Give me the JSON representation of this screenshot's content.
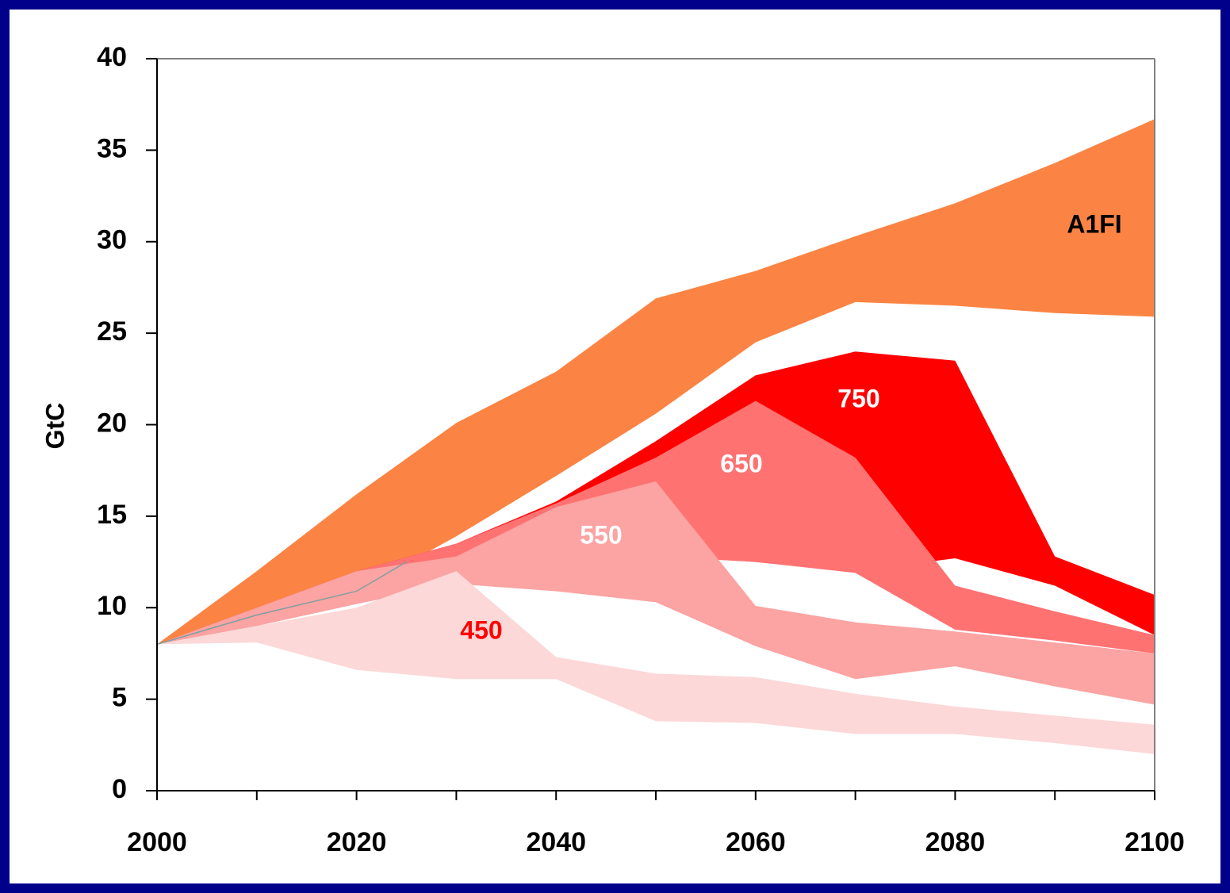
{
  "chart_data": {
    "type": "range-area",
    "y_label": "GtC",
    "x": [
      2000,
      2010,
      2020,
      2030,
      2040,
      2050,
      2060,
      2070,
      2080,
      2090,
      2100
    ],
    "xlim": [
      2000,
      2100
    ],
    "xticks": [
      2000,
      2020,
      2040,
      2060,
      2080,
      2100
    ],
    "xminorticks": [
      2010,
      2030,
      2050,
      2070,
      2090
    ],
    "ylim": [
      0,
      40
    ],
    "yticks": [
      0,
      5,
      10,
      15,
      20,
      25,
      30,
      35,
      40
    ],
    "series": [
      {
        "name": "A1FI",
        "color": "#fb8444",
        "label_color": "#000000",
        "upper": [
          8,
          12.0,
          16.2,
          20.1,
          22.9,
          26.9,
          28.4,
          30.3,
          32.1,
          34.3,
          36.7
        ],
        "lower": [
          8,
          9.5,
          10.9,
          13.9,
          17.2,
          20.6,
          24.5,
          26.7,
          26.5,
          26.1,
          25.9
        ]
      },
      {
        "name": "750",
        "color": "#ff0000",
        "label_color": "#ffffff",
        "upper": [
          8,
          10,
          12,
          13.5,
          15.8,
          19.1,
          22.7,
          24.0,
          23.5,
          12.8,
          10.7
        ],
        "lower": [
          8,
          9.5,
          11,
          12.5,
          13,
          13,
          12.5,
          12,
          12.7,
          11.2,
          8.5
        ]
      },
      {
        "name": "650",
        "color": "#ff7272",
        "label_color": "#ffffff",
        "upper": [
          8,
          10,
          12,
          13.5,
          15.7,
          18.2,
          21.3,
          18.2,
          11.2,
          9.8,
          8.5
        ],
        "lower": [
          8,
          9.5,
          10.5,
          11.5,
          11,
          12.8,
          12.5,
          11.9,
          8.8,
          8.2,
          7.5
        ]
      },
      {
        "name": "550",
        "color": "#fca3a3",
        "label_color": "#ffffff",
        "upper": [
          8,
          10,
          12,
          12.8,
          15.5,
          16.9,
          10.1,
          9.2,
          8.7,
          8.1,
          7.5
        ],
        "lower": [
          8,
          9,
          10.2,
          11.3,
          10.9,
          10.3,
          7.9,
          6.1,
          6.8,
          5.7,
          4.7
        ]
      },
      {
        "name": "450",
        "color": "#fcd8d8",
        "label_color": "#ff0000",
        "upper": [
          8,
          9,
          10,
          12,
          7.3,
          6.4,
          6.2,
          5.3,
          4.6,
          4.1,
          3.6
        ],
        "lower": [
          8,
          8.1,
          6.6,
          6.1,
          6.1,
          3.8,
          3.7,
          3.1,
          3.1,
          2.6,
          2.0
        ]
      }
    ],
    "trend": {
      "x": [
        2000,
        2010,
        2020,
        2025
      ],
      "values": [
        8,
        9.6,
        10.9,
        12.5
      ],
      "color": "#7f9fa0"
    }
  }
}
